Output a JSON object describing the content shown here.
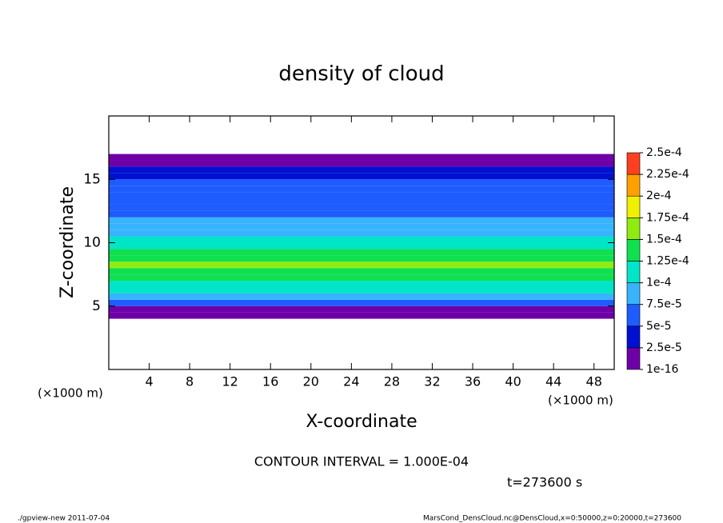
{
  "chart_data": {
    "type": "contour",
    "title": "density of cloud",
    "x_label": "X-coordinate",
    "y_label": "Z-coordinate",
    "x_unit_left": "(×1000 m)",
    "x_unit_right": "(×1000 m)",
    "annotations": [
      "CONTOUR INTERVAL = 1.000E-04",
      "t=273600 s"
    ],
    "footer_left": "./gpview-new  2011-07-04",
    "footer_right": "MarsCond_DensCloud.nc@DensCloud,x=0:50000,z=0:20000,t=273600",
    "xlim": [
      0,
      50
    ],
    "xticks": [
      4,
      8,
      12,
      16,
      20,
      24,
      28,
      32,
      36,
      40,
      44,
      48
    ],
    "ylim": [
      0,
      20
    ],
    "yticks": [
      5,
      10,
      15
    ],
    "z": [
      4.25,
      4.75,
      5.25,
      5.75,
      6.25,
      6.75,
      7.25,
      7.75,
      8.25,
      8.75,
      9.25,
      9.75,
      10.25,
      10.75,
      11.25,
      11.75,
      12.25,
      12.75,
      13.25,
      13.75,
      14.25,
      14.75,
      15.25,
      15.75,
      16.25,
      16.75
    ],
    "values": [
      1e-05,
      2e-05,
      5.5e-05,
      8.5e-05,
      0.000105,
      0.00012,
      0.000135,
      0.000145,
      0.00015,
      0.00014,
      0.00013,
      0.000115,
      0.0001,
      9e-05,
      8e-05,
      7.5e-05,
      6.5e-05,
      6e-05,
      5.5e-05,
      5.5e-05,
      5.5e-05,
      5e-05,
      4.5e-05,
      3e-05,
      1.5e-05,
      1e-05
    ],
    "levels": [
      {
        "value": 1e-16,
        "label": "1e-16"
      },
      {
        "value": 2.5e-05,
        "label": "2.5e-5"
      },
      {
        "value": 5e-05,
        "label": "5e-5"
      },
      {
        "value": 7.5e-05,
        "label": "7.5e-5"
      },
      {
        "value": 0.0001,
        "label": "1e-4"
      },
      {
        "value": 0.000125,
        "label": "1.25e-4"
      },
      {
        "value": 0.00015,
        "label": "1.5e-4"
      },
      {
        "value": 0.000175,
        "label": "1.75e-4"
      },
      {
        "value": 0.0002,
        "label": "2e-4"
      },
      {
        "value": 0.000225,
        "label": "2.25e-4"
      },
      {
        "value": 0.00025,
        "label": "2.5e-4"
      }
    ],
    "colors": [
      "#6e00a8",
      "#0010d0",
      "#1e5cff",
      "#38b4ff",
      "#00e4c8",
      "#10e050",
      "#90ec10",
      "#f0f000",
      "#ffa000",
      "#ff4020"
    ]
  }
}
